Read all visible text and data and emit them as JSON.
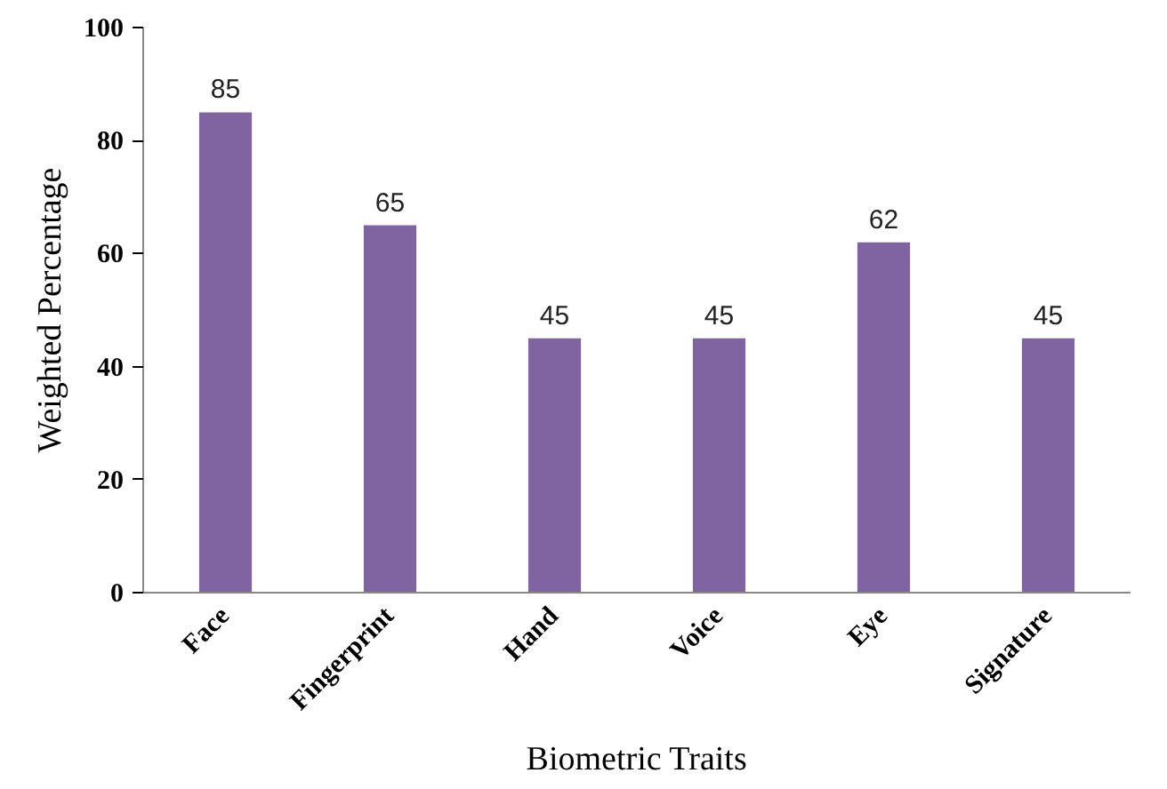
{
  "chart_data": {
    "type": "bar",
    "xlabel": "Biometric Traits",
    "ylabel": "Weighted Percentage",
    "categories": [
      "Face",
      "Fingerprint",
      "Hand",
      "Voice",
      "Eye",
      "Signature"
    ],
    "values": [
      85,
      65,
      45,
      45,
      62,
      45
    ],
    "color": "#8064a2",
    "ylim": [
      0,
      100
    ],
    "yticks": [
      0,
      20,
      40,
      60,
      80,
      100
    ],
    "grid": false,
    "data_labels": true
  }
}
